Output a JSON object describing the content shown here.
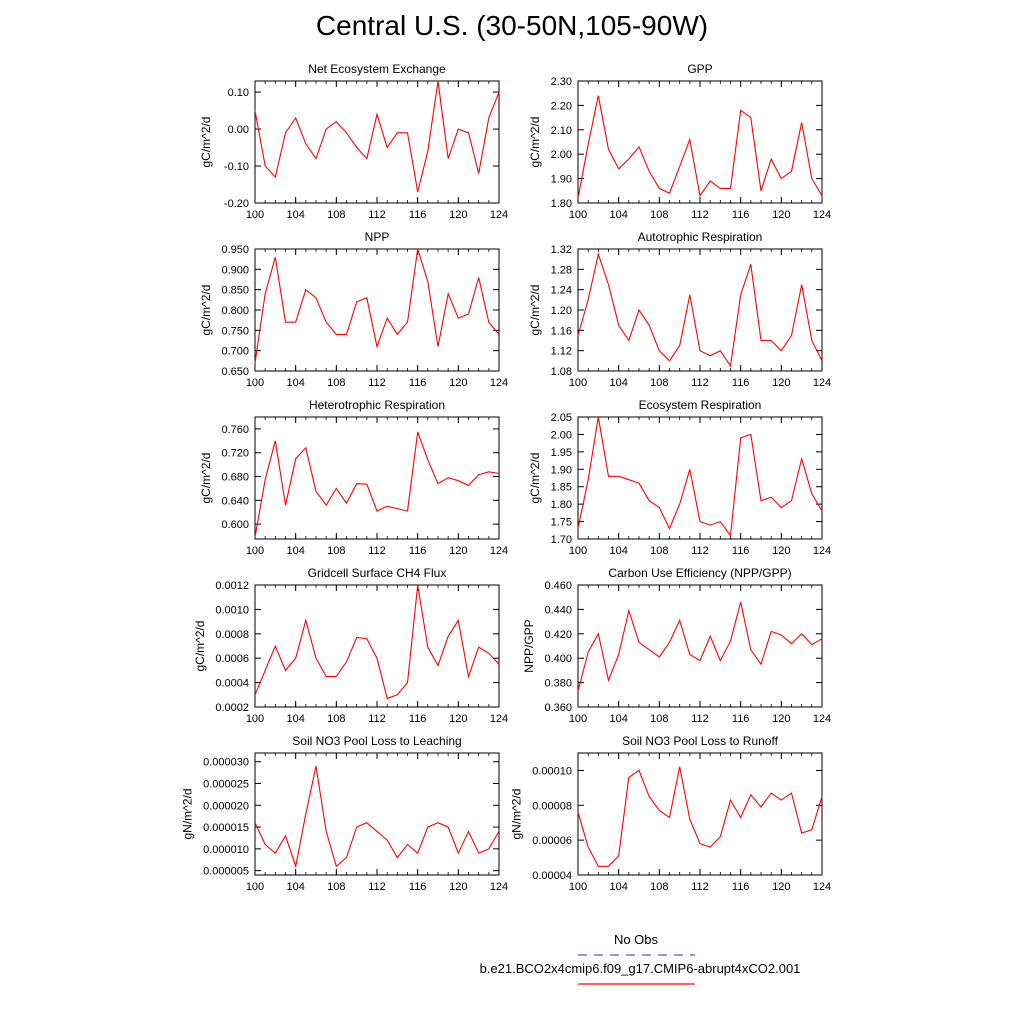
{
  "title": "Central U.S. (30-50N,105-90W)",
  "colors": {
    "series": "#ff0000",
    "obs": "#5555cc",
    "axis": "#000000"
  },
  "legend": {
    "obs_label": "No Obs",
    "series_label": "b.e21.BCO2x4cmip6.f09_g17.CMIP6-abrupt4xCO2.001"
  },
  "chart_data": [
    {
      "type": "line",
      "title": "Net Ecosystem Exchange",
      "ylabel": "gC/m^2/d",
      "xlim": [
        100,
        124
      ],
      "xticks": [
        "100",
        "104",
        "108",
        "112",
        "116",
        "120",
        "124"
      ],
      "ylim": [
        -0.2,
        0.13
      ],
      "yticks": [
        "0.10",
        "0.00",
        "-0.10",
        "-0.20"
      ],
      "series": [
        {
          "x": [
            100,
            101,
            102,
            103,
            104,
            105,
            106,
            107,
            108,
            109,
            110,
            111,
            112,
            113,
            114,
            115,
            116,
            117,
            118,
            119,
            120,
            121,
            122,
            123,
            124
          ],
          "values": [
            0.05,
            -0.1,
            -0.13,
            -0.01,
            0.03,
            -0.04,
            -0.08,
            0.0,
            0.02,
            -0.01,
            -0.05,
            -0.08,
            0.04,
            -0.05,
            -0.01,
            -0.01,
            -0.17,
            -0.06,
            0.13,
            -0.08,
            0.0,
            -0.01,
            -0.12,
            0.03,
            0.1
          ]
        }
      ]
    },
    {
      "type": "line",
      "title": "GPP",
      "ylabel": "gC/m^2/d",
      "xlim": [
        100,
        124
      ],
      "xticks": [
        "100",
        "104",
        "108",
        "112",
        "116",
        "120",
        "124"
      ],
      "ylim": [
        1.8,
        2.3
      ],
      "yticks": [
        "2.30",
        "2.20",
        "2.10",
        "2.00",
        "1.90",
        "1.80"
      ],
      "series": [
        {
          "x": [
            100,
            101,
            102,
            103,
            104,
            105,
            106,
            107,
            108,
            109,
            110,
            111,
            112,
            113,
            114,
            115,
            116,
            117,
            118,
            119,
            120,
            121,
            122,
            123,
            124
          ],
          "values": [
            1.82,
            2.04,
            2.24,
            2.02,
            1.94,
            1.98,
            2.03,
            1.93,
            1.86,
            1.84,
            1.95,
            2.06,
            1.83,
            1.89,
            1.86,
            1.86,
            2.18,
            2.15,
            1.85,
            1.98,
            1.9,
            1.93,
            2.13,
            1.9,
            1.83
          ]
        }
      ]
    },
    {
      "type": "line",
      "title": "NPP",
      "ylabel": "gC/m^2/d",
      "xlim": [
        100,
        124
      ],
      "xticks": [
        "100",
        "104",
        "108",
        "112",
        "116",
        "120",
        "124"
      ],
      "ylim": [
        0.65,
        0.95
      ],
      "yticks": [
        "0.950",
        "0.900",
        "0.850",
        "0.800",
        "0.750",
        "0.700",
        "0.650"
      ],
      "series": [
        {
          "x": [
            100,
            101,
            102,
            103,
            104,
            105,
            106,
            107,
            108,
            109,
            110,
            111,
            112,
            113,
            114,
            115,
            116,
            117,
            118,
            119,
            120,
            121,
            122,
            123,
            124
          ],
          "values": [
            0.67,
            0.84,
            0.93,
            0.77,
            0.77,
            0.85,
            0.83,
            0.77,
            0.74,
            0.74,
            0.82,
            0.83,
            0.71,
            0.78,
            0.74,
            0.77,
            0.95,
            0.87,
            0.71,
            0.84,
            0.78,
            0.79,
            0.88,
            0.77,
            0.74
          ]
        }
      ]
    },
    {
      "type": "line",
      "title": "Autotrophic Respiration",
      "ylabel": "gC/m^2/d",
      "xlim": [
        100,
        124
      ],
      "xticks": [
        "100",
        "104",
        "108",
        "112",
        "116",
        "120",
        "124"
      ],
      "ylim": [
        1.08,
        1.32
      ],
      "yticks": [
        "1.32",
        "1.28",
        "1.24",
        "1.20",
        "1.16",
        "1.12",
        "1.08"
      ],
      "series": [
        {
          "x": [
            100,
            101,
            102,
            103,
            104,
            105,
            106,
            107,
            108,
            109,
            110,
            111,
            112,
            113,
            114,
            115,
            116,
            117,
            118,
            119,
            120,
            121,
            122,
            123,
            124
          ],
          "values": [
            1.15,
            1.22,
            1.31,
            1.25,
            1.17,
            1.14,
            1.2,
            1.17,
            1.12,
            1.1,
            1.13,
            1.23,
            1.12,
            1.11,
            1.12,
            1.09,
            1.23,
            1.29,
            1.14,
            1.14,
            1.12,
            1.15,
            1.25,
            1.14,
            1.1
          ]
        }
      ]
    },
    {
      "type": "line",
      "title": "Heterotrophic Respiration",
      "ylabel": "gC/m^2/d",
      "xlim": [
        100,
        124
      ],
      "xticks": [
        "100",
        "104",
        "108",
        "112",
        "116",
        "120",
        "124"
      ],
      "ylim": [
        0.575,
        0.78
      ],
      "yticks": [
        "0.760",
        "0.720",
        "0.680",
        "0.640",
        "0.600"
      ],
      "series": [
        {
          "x": [
            100,
            101,
            102,
            103,
            104,
            105,
            106,
            107,
            108,
            109,
            110,
            111,
            112,
            113,
            114,
            115,
            116,
            117,
            118,
            119,
            120,
            121,
            122,
            123,
            124
          ],
          "values": [
            0.578,
            0.675,
            0.74,
            0.632,
            0.71,
            0.728,
            0.655,
            0.632,
            0.66,
            0.635,
            0.668,
            0.667,
            0.622,
            0.63,
            0.626,
            0.622,
            0.755,
            0.708,
            0.668,
            0.678,
            0.673,
            0.665,
            0.683,
            0.688,
            0.685
          ]
        }
      ]
    },
    {
      "type": "line",
      "title": "Ecosystem Respiration",
      "ylabel": "gC/m^2/d",
      "xlim": [
        100,
        124
      ],
      "xticks": [
        "100",
        "104",
        "108",
        "112",
        "116",
        "120",
        "124"
      ],
      "ylim": [
        1.7,
        2.05
      ],
      "yticks": [
        "2.05",
        "2.00",
        "1.95",
        "1.90",
        "1.85",
        "1.80",
        "1.75",
        "1.70"
      ],
      "series": [
        {
          "x": [
            100,
            101,
            102,
            103,
            104,
            105,
            106,
            107,
            108,
            109,
            110,
            111,
            112,
            113,
            114,
            115,
            116,
            117,
            118,
            119,
            120,
            121,
            122,
            123,
            124
          ],
          "values": [
            1.73,
            1.87,
            2.05,
            1.88,
            1.88,
            1.87,
            1.86,
            1.81,
            1.79,
            1.73,
            1.8,
            1.9,
            1.75,
            1.74,
            1.75,
            1.71,
            1.99,
            2.0,
            1.81,
            1.82,
            1.79,
            1.81,
            1.93,
            1.83,
            1.78
          ]
        }
      ]
    },
    {
      "type": "line",
      "title": "Gridcell Surface CH4 Flux",
      "ylabel": "gC/m^2/d",
      "xlim": [
        100,
        124
      ],
      "xticks": [
        "100",
        "104",
        "108",
        "112",
        "116",
        "120",
        "124"
      ],
      "ylim": [
        0.0002,
        0.0012
      ],
      "yticks": [
        "0.0012",
        "0.0010",
        "0.0008",
        "0.0006",
        "0.0004",
        "0.0002"
      ],
      "series": [
        {
          "x": [
            100,
            101,
            102,
            103,
            104,
            105,
            106,
            107,
            108,
            109,
            110,
            111,
            112,
            113,
            114,
            115,
            116,
            117,
            118,
            119,
            120,
            121,
            122,
            123,
            124
          ],
          "values": [
            0.0003,
            0.0005,
            0.0007,
            0.0005,
            0.0006,
            0.00091,
            0.0006,
            0.00045,
            0.00045,
            0.00057,
            0.00077,
            0.00076,
            0.0006,
            0.00027,
            0.0003,
            0.0004,
            0.0012,
            0.00069,
            0.00054,
            0.00078,
            0.00091,
            0.00045,
            0.00069,
            0.00064,
            0.00055
          ]
        }
      ]
    },
    {
      "type": "line",
      "title": "Carbon Use Efficiency (NPP/GPP)",
      "ylabel": "NPP/GPP",
      "xlim": [
        100,
        124
      ],
      "xticks": [
        "100",
        "104",
        "108",
        "112",
        "116",
        "120",
        "124"
      ],
      "ylim": [
        0.36,
        0.46
      ],
      "yticks": [
        "0.460",
        "0.440",
        "0.420",
        "0.400",
        "0.380",
        "0.360"
      ],
      "series": [
        {
          "x": [
            100,
            101,
            102,
            103,
            104,
            105,
            106,
            107,
            108,
            109,
            110,
            111,
            112,
            113,
            114,
            115,
            116,
            117,
            118,
            119,
            120,
            121,
            122,
            123,
            124
          ],
          "values": [
            0.373,
            0.405,
            0.42,
            0.382,
            0.403,
            0.439,
            0.413,
            0.407,
            0.401,
            0.413,
            0.431,
            0.403,
            0.398,
            0.418,
            0.398,
            0.414,
            0.446,
            0.407,
            0.395,
            0.422,
            0.419,
            0.412,
            0.42,
            0.411,
            0.416
          ]
        }
      ]
    },
    {
      "type": "line",
      "title": "Soil NO3 Pool Loss to Leaching",
      "ylabel": "gN/m^2/d",
      "xlim": [
        100,
        124
      ],
      "xticks": [
        "100",
        "104",
        "108",
        "112",
        "116",
        "120",
        "124"
      ],
      "ylim": [
        4e-06,
        3.2e-05
      ],
      "yticks": [
        "0.000030",
        "0.000025",
        "0.000020",
        "0.000015",
        "0.000010",
        "0.000005"
      ],
      "series": [
        {
          "x": [
            100,
            101,
            102,
            103,
            104,
            105,
            106,
            107,
            108,
            109,
            110,
            111,
            112,
            113,
            114,
            115,
            116,
            117,
            118,
            119,
            120,
            121,
            122,
            123,
            124
          ],
          "values": [
            1.6e-05,
            1.1e-05,
            9e-06,
            1.3e-05,
            6e-06,
            1.8e-05,
            2.9e-05,
            1.4e-05,
            6e-06,
            8e-06,
            1.5e-05,
            1.6e-05,
            1.4e-05,
            1.2e-05,
            8e-06,
            1.1e-05,
            9e-06,
            1.5e-05,
            1.6e-05,
            1.5e-05,
            9e-06,
            1.4e-05,
            9e-06,
            1e-05,
            1.4e-05
          ]
        }
      ]
    },
    {
      "type": "line",
      "title": "Soil NO3 Pool Loss to Runoff",
      "ylabel": "gN/m^2/d",
      "xlim": [
        100,
        124
      ],
      "xticks": [
        "100",
        "104",
        "108",
        "112",
        "116",
        "120",
        "124"
      ],
      "ylim": [
        4e-05,
        0.00011
      ],
      "yticks": [
        "0.00010",
        "0.00008",
        "0.00006",
        "0.00004"
      ],
      "series": [
        {
          "x": [
            100,
            101,
            102,
            103,
            104,
            105,
            106,
            107,
            108,
            109,
            110,
            111,
            112,
            113,
            114,
            115,
            116,
            117,
            118,
            119,
            120,
            121,
            122,
            123,
            124
          ],
          "values": [
            7.6e-05,
            5.6e-05,
            4.5e-05,
            4.5e-05,
            5.1e-05,
            9.6e-05,
            0.0001,
            8.5e-05,
            7.7e-05,
            7.3e-05,
            0.000102,
            7.2e-05,
            5.8e-05,
            5.6e-05,
            6.2e-05,
            8.3e-05,
            7.3e-05,
            8.6e-05,
            7.9e-05,
            8.7e-05,
            8.3e-05,
            8.7e-05,
            6.4e-05,
            6.6e-05,
            8.5e-05
          ]
        }
      ]
    }
  ]
}
